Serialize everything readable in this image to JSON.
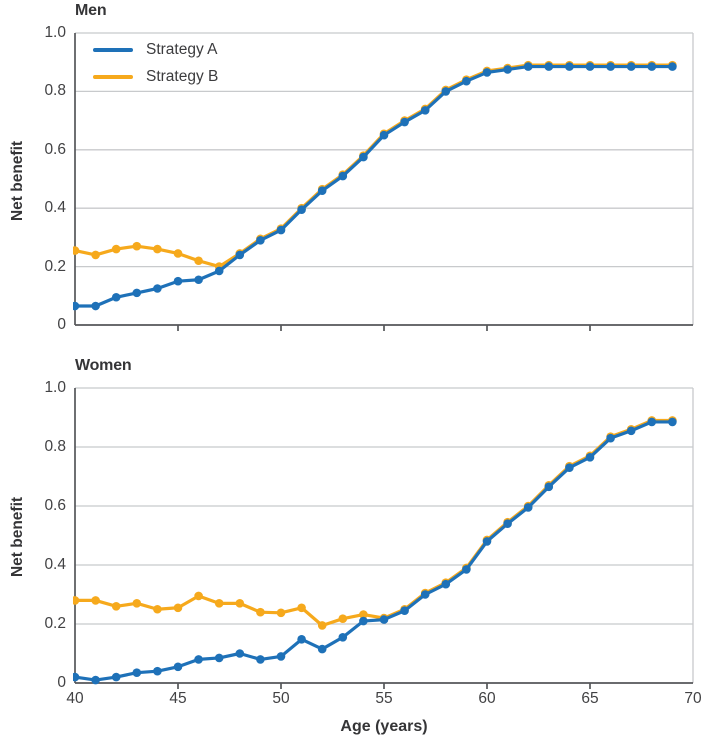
{
  "titles": {
    "men": "Men",
    "women": "Women"
  },
  "axes": {
    "y_label": "Net benefit",
    "x_label": "Age (years)",
    "y_tick_values": [
      1.0,
      0.8,
      0.6,
      0.4,
      0.2,
      0
    ],
    "y_tick_labels": [
      "1.0",
      "0.8",
      "0.6",
      "0.4",
      "0.2",
      "0"
    ],
    "x_tick_values": [
      40,
      45,
      50,
      55,
      60,
      65,
      70
    ],
    "x_tick_labels": [
      "40",
      "45",
      "50",
      "55",
      "60",
      "65",
      "70"
    ],
    "x_minor_tick_values": [
      45,
      50,
      55,
      60,
      65
    ]
  },
  "legend": {
    "strategy_a_label": "Strategy A",
    "strategy_b_label": "Strategy B"
  },
  "colors": {
    "strategy_a": "#1e71b8",
    "strategy_b": "#f6a91c",
    "grid": "#c8cacc",
    "axis": "#55565a",
    "text": "#3c3c3e"
  },
  "chart_data": [
    {
      "type": "line",
      "title": "Men",
      "xlabel": "",
      "ylabel": "Net benefit",
      "xlim": [
        40,
        70
      ],
      "ylim": [
        0,
        1.0
      ],
      "grid": true,
      "legend_position": "top-left",
      "x": [
        40,
        41,
        42,
        43,
        44,
        45,
        46,
        47,
        48,
        49,
        50,
        51,
        52,
        53,
        54,
        55,
        56,
        57,
        58,
        59,
        60,
        61,
        62,
        63,
        64,
        65,
        66,
        67,
        68,
        69
      ],
      "series": [
        {
          "name": "Strategy A",
          "values": [
            0.065,
            0.065,
            0.095,
            0.11,
            0.125,
            0.15,
            0.155,
            0.185,
            0.24,
            0.29,
            0.325,
            0.395,
            0.46,
            0.51,
            0.575,
            0.65,
            0.695,
            0.735,
            0.8,
            0.835,
            0.865,
            0.875,
            0.885,
            0.885,
            0.885,
            0.885,
            0.885,
            0.885,
            0.885,
            0.885
          ]
        },
        {
          "name": "Strategy B",
          "values": [
            0.255,
            0.24,
            0.26,
            0.27,
            0.26,
            0.245,
            0.22,
            0.2,
            0.245,
            0.295,
            0.33,
            0.4,
            0.465,
            0.515,
            0.58,
            0.655,
            0.7,
            0.74,
            0.805,
            0.84,
            0.87,
            0.88,
            0.89,
            0.89,
            0.89,
            0.89,
            0.89,
            0.89,
            0.89,
            0.89
          ]
        }
      ]
    },
    {
      "type": "line",
      "title": "Women",
      "xlabel": "Age (years)",
      "ylabel": "Net benefit",
      "xlim": [
        40,
        70
      ],
      "ylim": [
        0,
        1.0
      ],
      "grid": true,
      "legend_position": "none",
      "x": [
        40,
        41,
        42,
        43,
        44,
        45,
        46,
        47,
        48,
        49,
        50,
        51,
        52,
        53,
        54,
        55,
        56,
        57,
        58,
        59,
        60,
        61,
        62,
        63,
        64,
        65,
        66,
        67,
        68,
        69
      ],
      "series": [
        {
          "name": "Strategy A",
          "values": [
            0.02,
            0.01,
            0.02,
            0.035,
            0.04,
            0.055,
            0.08,
            0.085,
            0.1,
            0.08,
            0.09,
            0.148,
            0.115,
            0.155,
            0.21,
            0.215,
            0.245,
            0.3,
            0.335,
            0.385,
            0.48,
            0.54,
            0.595,
            0.665,
            0.73,
            0.765,
            0.83,
            0.855,
            0.885,
            0.885
          ]
        },
        {
          "name": "Strategy B",
          "values": [
            0.28,
            0.28,
            0.26,
            0.27,
            0.25,
            0.255,
            0.295,
            0.27,
            0.27,
            0.24,
            0.238,
            0.255,
            0.195,
            0.218,
            0.232,
            0.22,
            0.25,
            0.305,
            0.34,
            0.39,
            0.485,
            0.545,
            0.6,
            0.67,
            0.735,
            0.77,
            0.835,
            0.86,
            0.89,
            0.89
          ]
        }
      ]
    }
  ]
}
